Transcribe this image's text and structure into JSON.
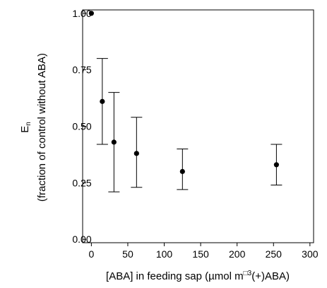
{
  "chart_data": {
    "type": "scatter",
    "xlabel": "[ABA] in feeding sap (µmol m",
    "xlabel_sup": "□3",
    "xlabel_tail": "(+)ABA)",
    "ylabel_symbol": "E",
    "ylabel_subscript": "n",
    "ylabel_desc": "(fraction of control without ABA)",
    "xlim": [
      -12,
      305
    ],
    "ylim": [
      -0.015,
      1.015
    ],
    "x_ticks": [
      0,
      50,
      100,
      150,
      200,
      250,
      300
    ],
    "x_tick_labels": [
      "0",
      "50",
      "100",
      "150",
      "200",
      "250",
      "300"
    ],
    "y_ticks": [
      0,
      0.25,
      0.5,
      0.75,
      1.0
    ],
    "y_tick_labels": [
      "0.00",
      "0.25",
      "0.50",
      "0.75",
      "1.00"
    ],
    "grid": false,
    "points": [
      {
        "x": 0,
        "y": 1.0,
        "low": null,
        "high": null
      },
      {
        "x": 15,
        "y": 0.61,
        "low": 0.42,
        "high": 0.8
      },
      {
        "x": 31,
        "y": 0.43,
        "low": 0.21,
        "high": 0.65
      },
      {
        "x": 62,
        "y": 0.38,
        "low": 0.23,
        "high": 0.54
      },
      {
        "x": 125,
        "y": 0.3,
        "low": 0.22,
        "high": 0.4
      },
      {
        "x": 254,
        "y": 0.33,
        "low": 0.24,
        "high": 0.42
      }
    ]
  }
}
